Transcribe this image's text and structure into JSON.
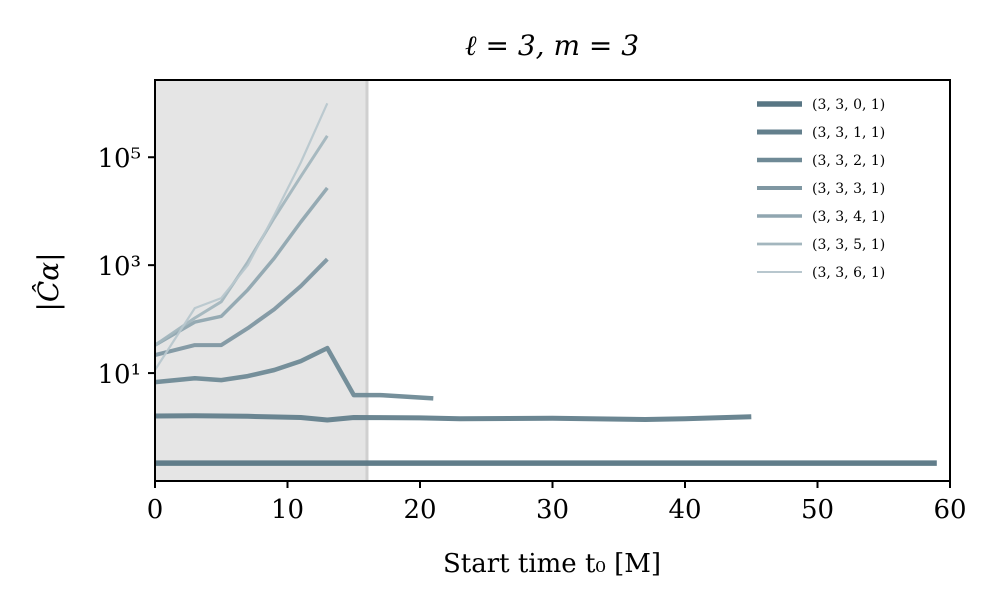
{
  "chart_data": {
    "type": "line",
    "title": "ℓ = 3, m = 3",
    "xlabel": "Start time t₀ [M]",
    "ylabel": "|Ĉα|",
    "xlim": [
      0,
      60
    ],
    "ylim": [
      0.1,
      2700000
    ],
    "yscale": "log",
    "xticks": [
      0,
      10,
      20,
      30,
      40,
      50,
      60
    ],
    "xtick_labels": [
      "0",
      "10",
      "20",
      "30",
      "40",
      "50",
      "60"
    ],
    "yticks": [
      10,
      1000,
      100000
    ],
    "ytick_labels": [
      "10¹",
      "10³",
      "10⁵"
    ],
    "shaded_region": [
      0,
      16
    ],
    "legend_position": "top-right",
    "series": [
      {
        "name": "(3, 3, 0, 1)",
        "color": "#587684",
        "x": [
          0,
          59
        ],
        "y": [
          0.215,
          0.215
        ]
      },
      {
        "name": "(3, 3, 1, 1)",
        "color": "#637f8c",
        "x": [
          0,
          3,
          7,
          11,
          13,
          15,
          20,
          23,
          30,
          37,
          40,
          45
        ],
        "y": [
          1.6,
          1.62,
          1.58,
          1.5,
          1.35,
          1.5,
          1.48,
          1.42,
          1.45,
          1.38,
          1.42,
          1.55
        ]
      },
      {
        "name": "(3, 3, 2, 1)",
        "color": "#6f8a96",
        "x": [
          0,
          3,
          5,
          7,
          9,
          11,
          13,
          15,
          17,
          21
        ],
        "y": [
          6.8,
          8,
          7.4,
          8.8,
          11.4,
          16.7,
          29,
          3.9,
          3.9,
          3.4
        ]
      },
      {
        "name": "(3, 3, 3, 1)",
        "color": "#7f97a2",
        "x": [
          0,
          3,
          5,
          7,
          9,
          11,
          13
        ],
        "y": [
          21.5,
          33,
          33,
          68,
          153,
          410,
          1290
        ]
      },
      {
        "name": "(3, 3, 4, 1)",
        "color": "#90a6b0",
        "x": [
          0,
          3,
          5,
          7,
          9,
          11,
          13
        ],
        "y": [
          33,
          88,
          113,
          350,
          1350,
          6300,
          27000
        ]
      },
      {
        "name": "(3, 3, 5, 1)",
        "color": "#a3b6be",
        "x": [
          0,
          3,
          5,
          7,
          9,
          11,
          13
        ],
        "y": [
          33,
          105,
          210,
          1150,
          7500,
          44000,
          250000
        ]
      },
      {
        "name": "(3, 3, 6, 1)",
        "color": "#b8c7ce",
        "x": [
          0,
          3,
          5,
          7,
          9,
          11,
          13
        ],
        "y": [
          11.4,
          160,
          245,
          1000,
          8500,
          80000,
          1000000
        ]
      }
    ]
  }
}
